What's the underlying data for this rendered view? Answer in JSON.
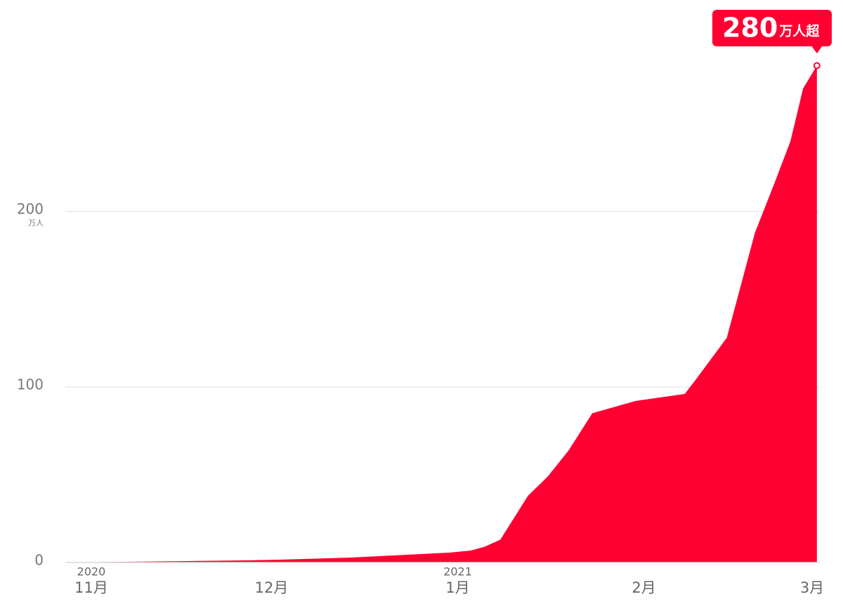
{
  "chart_data": {
    "type": "area",
    "color": "#ff0033",
    "grid": true,
    "x": [
      -4.3,
      25.7,
      31.6,
      43.3,
      50.3,
      59.6,
      63.2,
      65.5,
      68.1,
      72.7,
      76.0,
      79.5,
      83.4,
      86.5,
      90.6,
      94.7,
      98.8,
      100.6,
      105.8,
      110.5,
      113.5,
      116.4,
      118.5,
      120.8
    ],
    "values": [
      0,
      1.2,
      1.6,
      2.8,
      4,
      5.6,
      6.8,
      9,
      13,
      38,
      49,
      64,
      85,
      88,
      92,
      94,
      96,
      104,
      128,
      188,
      214,
      240,
      270,
      283
    ],
    "xlim": [
      -4.3,
      120.8
    ],
    "xticks": [
      {
        "value": 0,
        "label": "11月"
      },
      {
        "value": 30,
        "label": "12月"
      },
      {
        "value": 61,
        "label": "1月"
      },
      {
        "value": 92,
        "label": "2月"
      },
      {
        "value": 120,
        "label": "3月"
      }
    ],
    "xtick_years": [
      {
        "value": 0,
        "label": "2020"
      },
      {
        "value": 61,
        "label": "2021"
      }
    ],
    "ylim": [
      0,
      300
    ],
    "yticks": [
      0,
      100,
      200
    ],
    "y_unit": "万人",
    "annotation": {
      "main": "280",
      "suffix": "万人超"
    }
  }
}
